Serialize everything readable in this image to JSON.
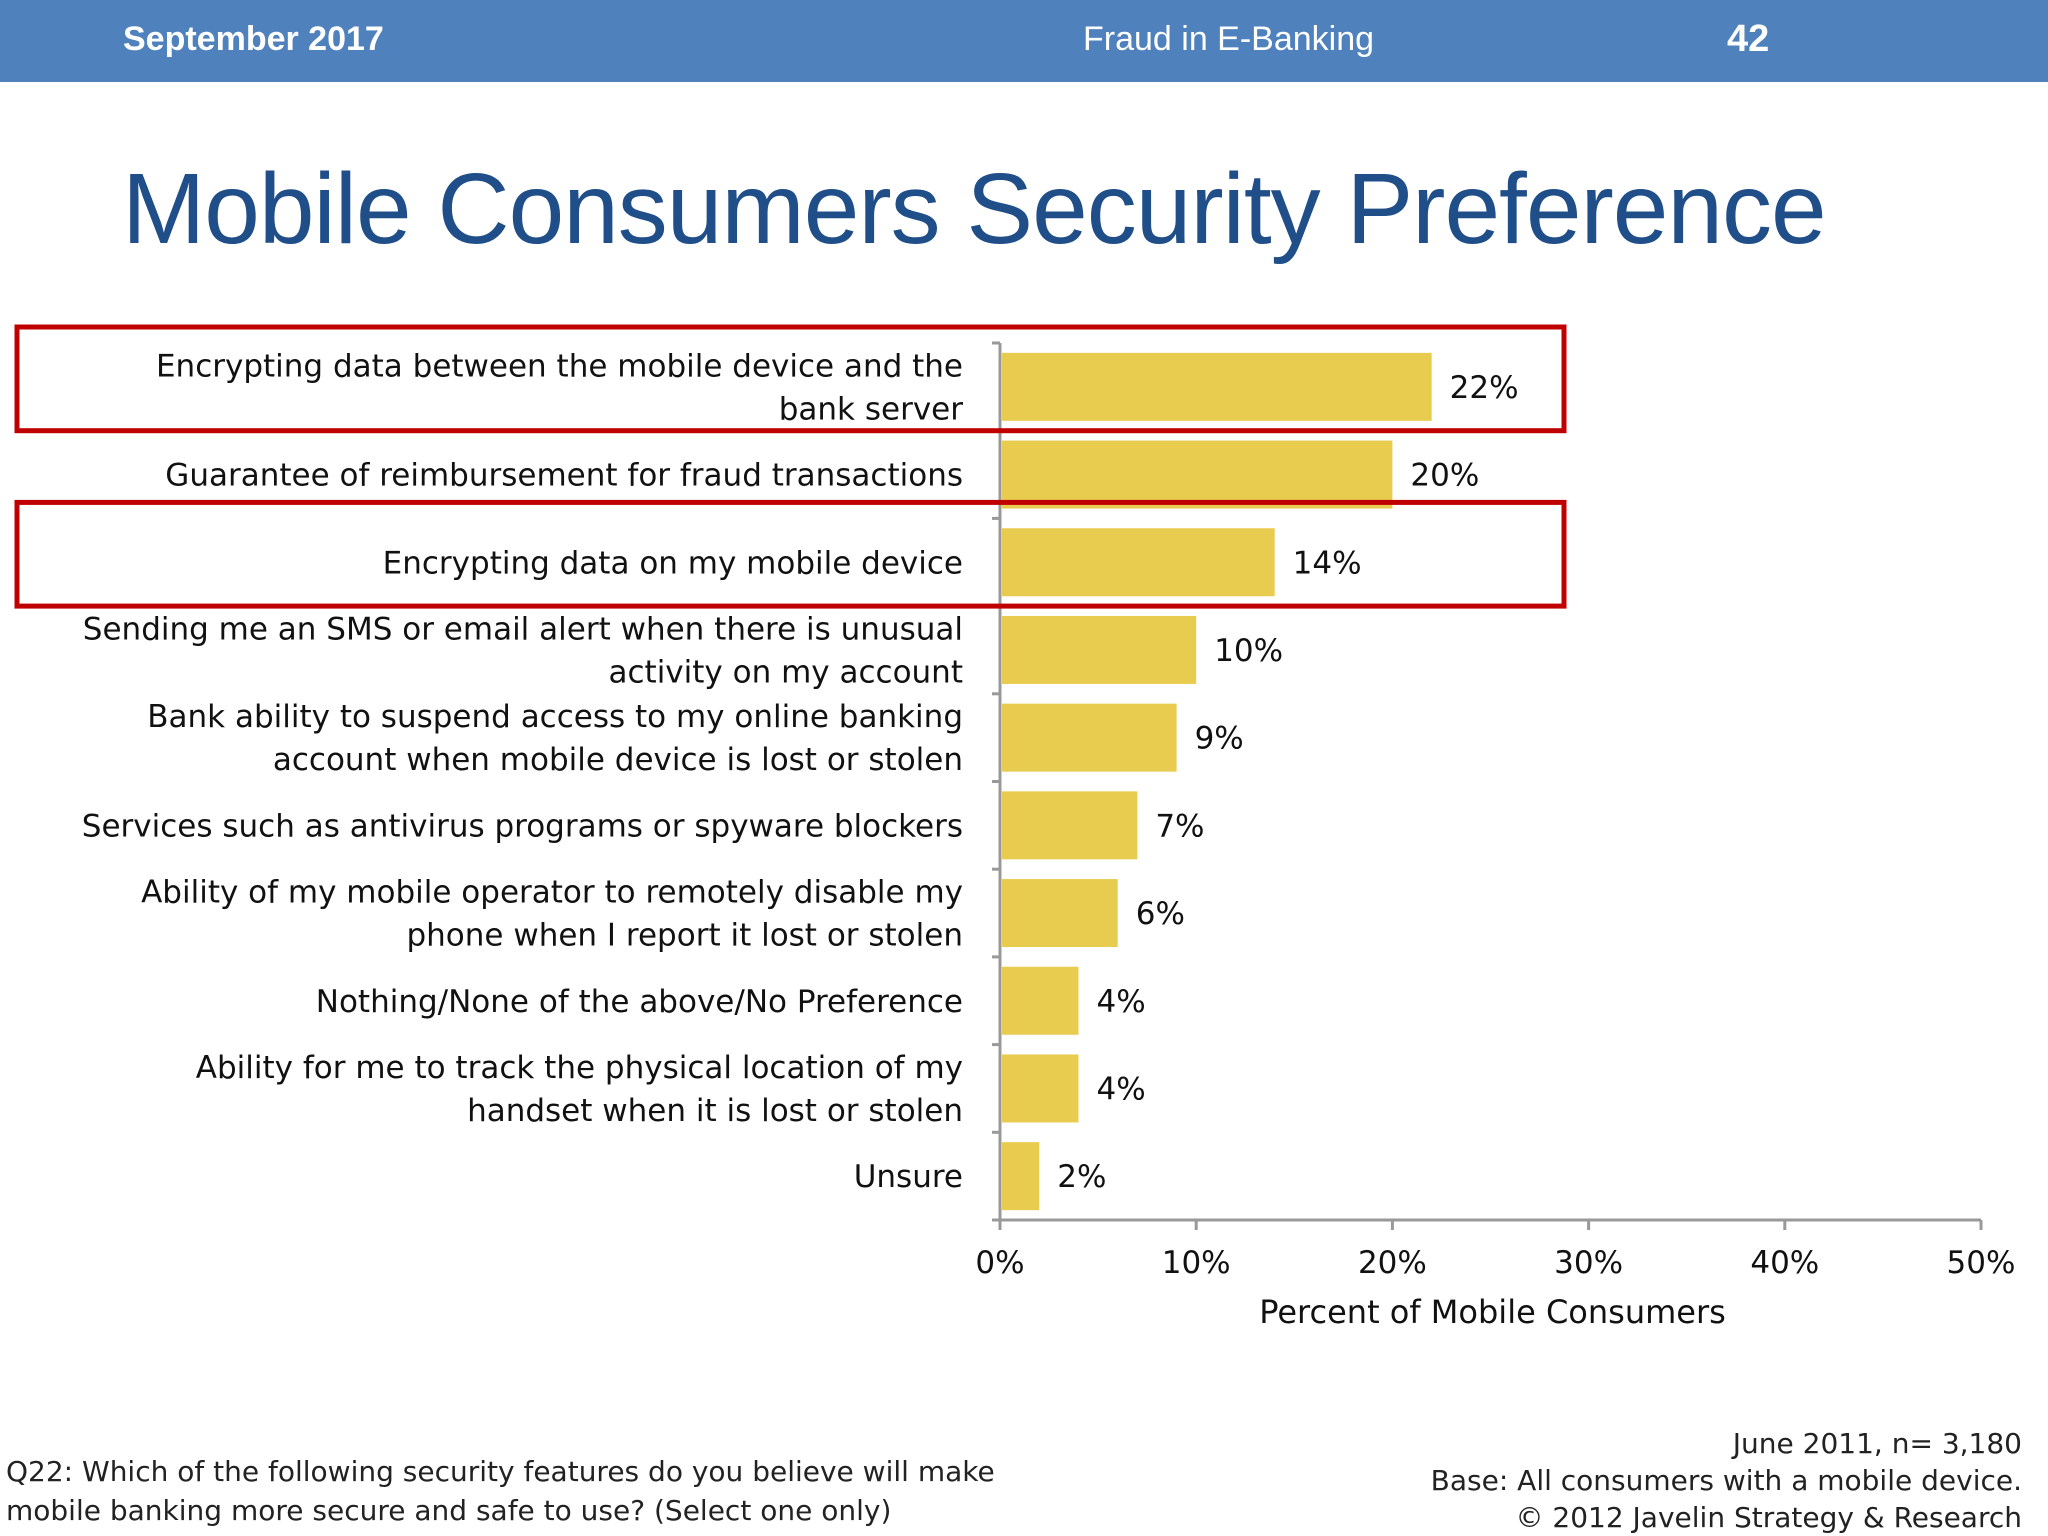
{
  "header": {
    "date": "September 2017",
    "center_title": "Fraud in E-Banking",
    "page_number": "42",
    "bar_color": "#4f81bd"
  },
  "slide": {
    "title": "Mobile Consumers Security Preference",
    "title_color": "#1f4e89"
  },
  "chart_data": {
    "type": "bar",
    "orientation": "horizontal",
    "categories": [
      [
        "Encrypting data  between the mobile device and the",
        "bank server"
      ],
      [
        "Guarantee of reimbursement for fraud transactions"
      ],
      [
        "Encrypting data on my mobile device"
      ],
      [
        "Sending me an SMS or email alert when there is unusual",
        "activity on my account"
      ],
      [
        "Bank ability to suspend access to my online banking",
        "account when mobile device is lost or stolen"
      ],
      [
        "Services such as antivirus programs or spyware blockers"
      ],
      [
        "Ability of my mobile operator to remotely disable my",
        "phone when I report it lost or stolen"
      ],
      [
        "Nothing/None of the above/No Preference"
      ],
      [
        "Ability for me to track the physical location of my",
        "handset when it is lost or stolen"
      ],
      [
        "Unsure"
      ]
    ],
    "values": [
      22,
      20,
      14,
      10,
      9,
      7,
      6,
      4,
      4,
      2
    ],
    "value_labels": [
      "22%",
      "20%",
      "14%",
      "10%",
      "9%",
      "7%",
      "6%",
      "4%",
      "4%",
      "2%"
    ],
    "highlighted_categories": [
      0,
      2
    ],
    "xlabel": "Percent of Mobile Consumers",
    "xlim": [
      0,
      50
    ],
    "x_ticks": [
      "0%",
      "10%",
      "20%",
      "30%",
      "40%",
      "50%"
    ],
    "bar_color": "#e8cc4f",
    "highlight_color": "#c00000",
    "grid": false,
    "legend": "none"
  },
  "footnotes": {
    "question": "Q22: Which of the following security features do you believe will make mobile banking more secure and safe to use? (Select one only)",
    "source_lines": [
      "June 2011,  n=  3,180",
      "Base: All consumers with a mobile device.",
      "© 2012 Javelin Strategy & Research"
    ]
  }
}
